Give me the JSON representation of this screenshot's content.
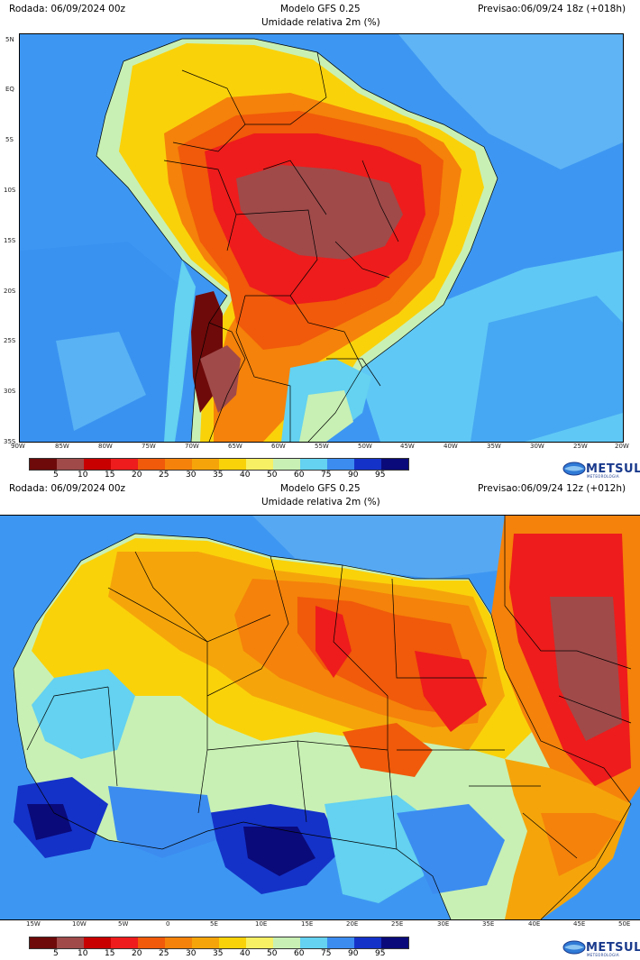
{
  "top": {
    "run": "Rodada: 06/09/2024 00z",
    "model": "Modelo GFS 0.25",
    "variable": "Umidade relativa 2m (%)",
    "forecast": "Previsao:06/09/24 18z (+018h)",
    "lat_ticks": [
      "5N",
      "EQ",
      "5S",
      "10S",
      "15S",
      "20S",
      "25S",
      "30S",
      "35S"
    ],
    "lon_ticks": [
      "90W",
      "85W",
      "80W",
      "75W",
      "70W",
      "65W",
      "60W",
      "55W",
      "50W",
      "45W",
      "40W",
      "35W",
      "30W",
      "25W",
      "20W"
    ]
  },
  "bottom": {
    "run": "Rodada: 06/09/2024 00z",
    "model": "Modelo GFS 0.25",
    "variable": "Umidade relativa 2m (%)",
    "forecast": "Previsao:06/09/24 12z (+012h)",
    "lon_ticks": [
      "15W",
      "10W",
      "5W",
      "0",
      "5E",
      "10E",
      "15E",
      "20E",
      "25E",
      "30E",
      "35E",
      "40E",
      "45E",
      "50E"
    ]
  },
  "colorbar": {
    "labels": [
      "5",
      "10",
      "15",
      "20",
      "25",
      "30",
      "35",
      "40",
      "50",
      "60",
      "75",
      "90",
      "95"
    ],
    "colors": [
      "#6e0a0a",
      "#a04a4a",
      "#c80000",
      "#ee1c1c",
      "#f05a0a",
      "#f5820a",
      "#f5a50a",
      "#fad20a",
      "#f7f064",
      "#c8f0b4",
      "#64d2f0",
      "#3c8cf0",
      "#1432c8",
      "#0a0a7a"
    ]
  },
  "brand": {
    "name": "METSUL",
    "tagline": "METEOROLOGIA"
  }
}
